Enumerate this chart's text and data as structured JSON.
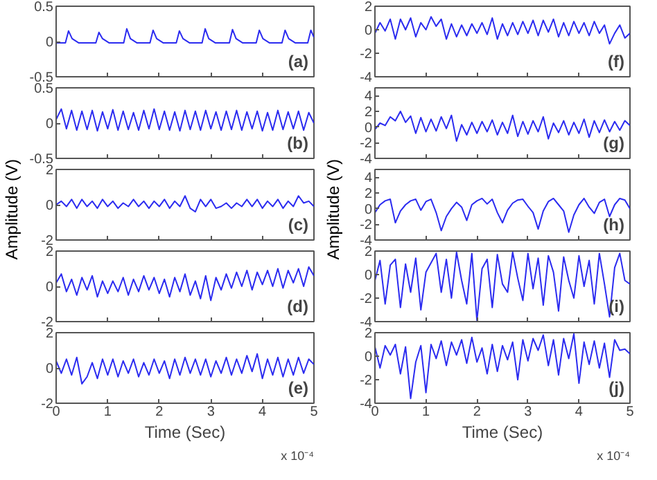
{
  "chart_data": [
    {
      "type": "line",
      "color": "#2b2bf0",
      "xlim": [
        0,
        5
      ],
      "ylim": [
        -0.5,
        0.5
      ],
      "xticks": [
        0,
        1,
        2,
        3,
        4,
        5
      ],
      "yticks": [
        -0.5,
        0,
        0.5
      ],
      "tick_labels": "y",
      "annotations": [
        "(a)"
      ],
      "x": [
        0,
        0.18,
        0.24,
        0.31,
        0.44,
        0.77,
        0.83,
        0.9,
        1.03,
        1.31,
        1.37,
        1.44,
        1.57,
        1.82,
        1.88,
        1.95,
        2.08,
        2.33,
        2.39,
        2.46,
        2.59,
        2.83,
        2.89,
        2.96,
        3.09,
        3.36,
        3.42,
        3.49,
        3.62,
        3.88,
        3.94,
        4.01,
        4.14,
        4.38,
        4.44,
        4.51,
        4.64,
        4.88,
        4.94,
        5.0
      ],
      "values": [
        -0.02,
        -0.02,
        0.15,
        0.04,
        -0.02,
        -0.02,
        0.13,
        0.04,
        -0.02,
        -0.02,
        0.18,
        0.04,
        -0.02,
        -0.02,
        0.16,
        0.04,
        -0.02,
        -0.02,
        0.15,
        0.04,
        -0.02,
        -0.02,
        0.18,
        0.04,
        -0.02,
        -0.02,
        0.17,
        0.04,
        -0.02,
        -0.02,
        0.16,
        0.04,
        -0.02,
        -0.02,
        0.16,
        0.04,
        -0.02,
        -0.02,
        0.16,
        0.06
      ]
    },
    {
      "type": "line",
      "color": "#2b2bf0",
      "xlim": [
        0,
        5
      ],
      "ylim": [
        -0.5,
        0.5
      ],
      "xticks": [
        0,
        1,
        2,
        3,
        4,
        5
      ],
      "yticks": [
        -0.5,
        0,
        0.5
      ],
      "tick_labels": "y",
      "annotations": [
        "(b)"
      ],
      "x": [
        0,
        0.1,
        0.2,
        0.3,
        0.4,
        0.5,
        0.6,
        0.7,
        0.8,
        0.9,
        1.0,
        1.1,
        1.2,
        1.3,
        1.4,
        1.5,
        1.6,
        1.7,
        1.8,
        1.9,
        2.0,
        2.1,
        2.2,
        2.3,
        2.4,
        2.5,
        2.6,
        2.7,
        2.8,
        2.9,
        3.0,
        3.1,
        3.2,
        3.3,
        3.4,
        3.5,
        3.6,
        3.7,
        3.8,
        3.9,
        4.0,
        4.1,
        4.2,
        4.3,
        4.4,
        4.5,
        4.6,
        4.7,
        4.8,
        4.9,
        5.0
      ],
      "values": [
        0.05,
        0.2,
        -0.08,
        0.18,
        -0.1,
        0.17,
        -0.09,
        0.18,
        -0.11,
        0.16,
        -0.08,
        0.19,
        -0.1,
        0.17,
        -0.09,
        0.15,
        -0.1,
        0.18,
        -0.08,
        0.2,
        -0.09,
        0.17,
        -0.1,
        0.16,
        -0.11,
        0.18,
        -0.09,
        0.17,
        -0.1,
        0.18,
        -0.08,
        0.16,
        -0.1,
        0.17,
        -0.09,
        0.18,
        -0.1,
        0.16,
        -0.08,
        0.17,
        -0.11,
        0.15,
        -0.1,
        0.18,
        -0.09,
        0.16,
        -0.08,
        0.17,
        -0.1,
        0.15,
        0.0
      ]
    },
    {
      "type": "line",
      "color": "#2b2bf0",
      "xlim": [
        0,
        5
      ],
      "ylim": [
        -2,
        2
      ],
      "xticks": [
        0,
        1,
        2,
        3,
        4,
        5
      ],
      "yticks": [
        -2,
        0,
        2
      ],
      "tick_labels": "y",
      "annotations": [
        "(c)"
      ],
      "ylabel": "Amplitude (V)",
      "x": [
        0,
        0.1,
        0.2,
        0.3,
        0.4,
        0.5,
        0.6,
        0.7,
        0.8,
        0.9,
        1.0,
        1.1,
        1.2,
        1.3,
        1.4,
        1.5,
        1.6,
        1.7,
        1.8,
        1.9,
        2.0,
        2.1,
        2.2,
        2.3,
        2.4,
        2.5,
        2.6,
        2.7,
        2.8,
        2.9,
        3.0,
        3.1,
        3.2,
        3.3,
        3.4,
        3.5,
        3.6,
        3.7,
        3.8,
        3.9,
        4.0,
        4.1,
        4.2,
        4.3,
        4.4,
        4.5,
        4.6,
        4.7,
        4.8,
        4.9,
        5.0
      ],
      "values": [
        0.0,
        0.2,
        -0.1,
        0.3,
        -0.2,
        0.3,
        -0.1,
        0.2,
        -0.2,
        0.3,
        -0.1,
        0.2,
        -0.2,
        0.1,
        -0.1,
        0.3,
        -0.1,
        0.2,
        -0.2,
        0.2,
        -0.1,
        0.3,
        -0.2,
        0.2,
        -0.1,
        0.5,
        -0.2,
        -0.4,
        0.3,
        -0.1,
        0.3,
        -0.2,
        -0.1,
        0.1,
        -0.2,
        0.1,
        -0.1,
        0.3,
        -0.1,
        0.3,
        -0.2,
        0.2,
        -0.1,
        0.3,
        -0.2,
        0.2,
        -0.1,
        0.5,
        0.1,
        0.2,
        -0.1
      ]
    },
    {
      "type": "line",
      "color": "#2b2bf0",
      "xlim": [
        0,
        5
      ],
      "ylim": [
        -2,
        2
      ],
      "xticks": [
        0,
        1,
        2,
        3,
        4,
        5
      ],
      "yticks": [
        -2,
        0,
        2
      ],
      "tick_labels": "y",
      "annotations": [
        "(d)"
      ],
      "x": [
        0,
        0.1,
        0.2,
        0.3,
        0.4,
        0.5,
        0.6,
        0.7,
        0.8,
        0.9,
        1.0,
        1.1,
        1.2,
        1.3,
        1.4,
        1.5,
        1.6,
        1.7,
        1.8,
        1.9,
        2.0,
        2.1,
        2.2,
        2.3,
        2.4,
        2.5,
        2.6,
        2.7,
        2.8,
        2.9,
        3.0,
        3.1,
        3.2,
        3.3,
        3.4,
        3.5,
        3.6,
        3.7,
        3.8,
        3.9,
        4.0,
        4.1,
        4.2,
        4.3,
        4.4,
        4.5,
        4.6,
        4.7,
        4.8,
        4.9,
        5.0
      ],
      "values": [
        0.2,
        0.7,
        -0.3,
        0.4,
        -0.5,
        0.5,
        -0.2,
        0.6,
        -0.6,
        0.3,
        -0.4,
        0.3,
        -0.3,
        0.5,
        -0.5,
        0.4,
        -0.3,
        0.6,
        -0.2,
        0.5,
        -0.4,
        0.4,
        -0.6,
        0.5,
        -0.3,
        0.7,
        -0.5,
        0.3,
        -0.7,
        0.6,
        -0.8,
        0.5,
        -0.2,
        0.7,
        -0.1,
        0.8,
        0.0,
        0.9,
        -0.2,
        0.8,
        0.1,
        0.9,
        0.0,
        1.0,
        -0.1,
        0.9,
        0.2,
        1.0,
        0.0,
        1.1,
        0.6
      ]
    },
    {
      "type": "line",
      "color": "#2b2bf0",
      "xlim": [
        0,
        5
      ],
      "ylim": [
        -2,
        2
      ],
      "xticks": [
        0,
        1,
        2,
        3,
        4,
        5
      ],
      "yticks": [
        -2,
        0,
        2
      ],
      "annotations": [
        "(e)",
        "x 10⁻⁴"
      ],
      "xlabel": "Time (Sec)",
      "x": [
        0,
        0.1,
        0.2,
        0.3,
        0.4,
        0.5,
        0.6,
        0.7,
        0.8,
        0.9,
        1.0,
        1.1,
        1.2,
        1.3,
        1.4,
        1.5,
        1.6,
        1.7,
        1.8,
        1.9,
        2.0,
        2.1,
        2.2,
        2.3,
        2.4,
        2.5,
        2.6,
        2.7,
        2.8,
        2.9,
        3.0,
        3.1,
        3.2,
        3.3,
        3.4,
        3.5,
        3.6,
        3.7,
        3.8,
        3.9,
        4.0,
        4.1,
        4.2,
        4.3,
        4.4,
        4.5,
        4.6,
        4.7,
        4.8,
        4.9,
        5.0
      ],
      "values": [
        0.4,
        -0.3,
        0.5,
        -0.4,
        0.6,
        -0.9,
        -0.5,
        0.3,
        -0.6,
        0.5,
        -0.4,
        0.5,
        -0.5,
        0.4,
        -0.3,
        0.5,
        -0.5,
        0.3,
        -0.4,
        0.5,
        -0.3,
        0.4,
        -0.6,
        0.5,
        -0.4,
        0.6,
        -0.3,
        0.5,
        -0.4,
        0.5,
        -0.5,
        0.4,
        -0.3,
        0.6,
        -0.4,
        0.5,
        -0.3,
        0.7,
        -0.2,
        0.8,
        -0.6,
        0.5,
        -0.4,
        0.6,
        -0.5,
        0.5,
        -0.4,
        0.6,
        -0.3,
        0.5,
        0.2
      ]
    },
    {
      "type": "line",
      "color": "#2b2bf0",
      "xlim": [
        0,
        5
      ],
      "ylim": [
        -4,
        2
      ],
      "xticks": [
        0,
        1,
        2,
        3,
        4,
        5
      ],
      "yticks": [
        -4,
        -2,
        0,
        2
      ],
      "tick_labels": "y",
      "annotations": [
        "(f)"
      ],
      "x": [
        0,
        0.1,
        0.2,
        0.3,
        0.4,
        0.5,
        0.6,
        0.7,
        0.8,
        0.9,
        1.0,
        1.1,
        1.2,
        1.3,
        1.4,
        1.5,
        1.6,
        1.7,
        1.8,
        1.9,
        2.0,
        2.1,
        2.2,
        2.3,
        2.4,
        2.5,
        2.6,
        2.7,
        2.8,
        2.9,
        3.0,
        3.1,
        3.2,
        3.3,
        3.4,
        3.5,
        3.6,
        3.7,
        3.8,
        3.9,
        4.0,
        4.1,
        4.2,
        4.3,
        4.4,
        4.5,
        4.6,
        4.7,
        4.8,
        4.9,
        5.0
      ],
      "values": [
        -0.3,
        0.6,
        -0.1,
        0.9,
        -0.8,
        0.9,
        0.0,
        1.0,
        -0.6,
        0.6,
        0.0,
        1.1,
        0.3,
        0.9,
        -0.8,
        0.5,
        -0.6,
        0.4,
        -0.5,
        0.5,
        -0.3,
        0.6,
        -0.4,
        1.0,
        -0.8,
        0.5,
        -0.5,
        0.6,
        -0.4,
        0.7,
        -0.3,
        0.8,
        -0.5,
        0.8,
        -0.2,
        0.9,
        -0.6,
        0.6,
        -0.5,
        0.7,
        -0.3,
        0.6,
        -0.5,
        0.7,
        -0.3,
        0.4,
        -1.2,
        -0.3,
        0.4,
        -0.7,
        -0.3
      ]
    },
    {
      "type": "line",
      "color": "#2b2bf0",
      "xlim": [
        0,
        5
      ],
      "ylim": [
        -4,
        5
      ],
      "xticks": [
        0,
        1,
        2,
        3,
        4,
        5
      ],
      "yticks": [
        -4,
        -2,
        0,
        2,
        4
      ],
      "tick_labels": "y",
      "annotations": [
        "(g)"
      ],
      "x": [
        0,
        0.1,
        0.2,
        0.3,
        0.4,
        0.5,
        0.6,
        0.7,
        0.8,
        0.9,
        1.0,
        1.1,
        1.2,
        1.3,
        1.4,
        1.5,
        1.6,
        1.7,
        1.8,
        1.9,
        2.0,
        2.1,
        2.2,
        2.3,
        2.4,
        2.5,
        2.6,
        2.7,
        2.8,
        2.9,
        3.0,
        3.1,
        3.2,
        3.3,
        3.4,
        3.5,
        3.6,
        3.7,
        3.8,
        3.9,
        4.0,
        4.1,
        4.2,
        4.3,
        4.4,
        4.5,
        4.6,
        4.7,
        4.8,
        4.9,
        5.0
      ],
      "values": [
        -0.3,
        0.5,
        0.2,
        1.3,
        0.8,
        2.0,
        0.6,
        1.4,
        -0.8,
        1.2,
        -0.6,
        1.0,
        -0.5,
        1.3,
        -0.2,
        1.5,
        -1.8,
        0.3,
        -1.0,
        0.6,
        -0.8,
        0.7,
        -0.6,
        0.9,
        -1.0,
        0.6,
        -0.8,
        1.5,
        -1.2,
        0.7,
        -0.9,
        0.8,
        -0.6,
        1.3,
        -1.5,
        0.5,
        -0.7,
        0.8,
        -1.0,
        0.6,
        -0.8,
        1.0,
        -1.3,
        0.8,
        -0.7,
        0.9,
        -0.6,
        0.7,
        -0.4,
        0.8,
        0.2
      ]
    },
    {
      "type": "line",
      "color": "#2b2bf0",
      "xlim": [
        0,
        5
      ],
      "ylim": [
        -4,
        5
      ],
      "xticks": [
        0,
        1,
        2,
        3,
        4,
        5
      ],
      "yticks": [
        -4,
        -2,
        0,
        2,
        4
      ],
      "tick_labels": "y",
      "annotations": [
        "(h)"
      ],
      "ylabel": "Amplitude (V)",
      "x": [
        0,
        0.1,
        0.2,
        0.3,
        0.4,
        0.5,
        0.6,
        0.7,
        0.8,
        0.9,
        1.0,
        1.1,
        1.2,
        1.3,
        1.4,
        1.5,
        1.6,
        1.7,
        1.8,
        1.9,
        2.0,
        2.1,
        2.2,
        2.3,
        2.4,
        2.5,
        2.6,
        2.7,
        2.8,
        2.9,
        3.0,
        3.1,
        3.2,
        3.3,
        3.4,
        3.5,
        3.6,
        3.7,
        3.8,
        3.9,
        4.0,
        4.1,
        4.2,
        4.3,
        4.4,
        4.5,
        4.6,
        4.7,
        4.8,
        4.9,
        5.0
      ],
      "values": [
        -0.5,
        0.5,
        1.0,
        1.2,
        -1.8,
        -0.3,
        0.5,
        1.0,
        1.2,
        -0.2,
        0.9,
        1.2,
        -0.5,
        -2.8,
        -1.0,
        0.0,
        0.8,
        0.2,
        -1.5,
        0.5,
        1.0,
        1.3,
        0.6,
        1.2,
        -0.5,
        -1.8,
        -0.2,
        0.7,
        1.1,
        1.2,
        0.3,
        -0.5,
        -2.6,
        -0.3,
        0.9,
        1.3,
        0.5,
        -0.3,
        -3.0,
        -0.8,
        0.5,
        1.3,
        0.2,
        -0.6,
        0.8,
        1.2,
        -1.0,
        0.5,
        1.3,
        1.1,
        0.0
      ]
    },
    {
      "type": "line",
      "color": "#2b2bf0",
      "xlim": [
        0,
        5
      ],
      "ylim": [
        -4,
        2
      ],
      "xticks": [
        0,
        1,
        2,
        3,
        4,
        5
      ],
      "yticks": [
        -4,
        -2,
        0,
        2
      ],
      "tick_labels": "y",
      "annotations": [
        "(i)"
      ],
      "x": [
        0,
        0.1,
        0.2,
        0.3,
        0.4,
        0.5,
        0.6,
        0.7,
        0.8,
        0.9,
        1.0,
        1.1,
        1.2,
        1.3,
        1.4,
        1.5,
        1.6,
        1.7,
        1.8,
        1.9,
        2.0,
        2.1,
        2.2,
        2.3,
        2.4,
        2.5,
        2.6,
        2.7,
        2.8,
        2.9,
        3.0,
        3.1,
        3.2,
        3.3,
        3.4,
        3.5,
        3.6,
        3.7,
        3.8,
        3.9,
        4.0,
        4.1,
        4.2,
        4.3,
        4.4,
        4.5,
        4.6,
        4.7,
        4.8,
        4.9,
        5.0
      ],
      "values": [
        -0.5,
        1.2,
        -2.5,
        0.8,
        1.3,
        -2.8,
        0.9,
        -1.5,
        1.4,
        -3.0,
        0.2,
        1.0,
        1.8,
        -1.5,
        1.3,
        -2.0,
        1.9,
        -0.5,
        -2.5,
        1.8,
        -3.9,
        0.5,
        1.3,
        -2.8,
        1.7,
        -0.8,
        -1.5,
        1.9,
        -0.3,
        -2.2,
        1.8,
        -1.2,
        1.4,
        -2.6,
        1.6,
        0.2,
        -3.1,
        1.5,
        -0.5,
        -2.0,
        1.6,
        -1.0,
        1.2,
        -2.5,
        1.8,
        -0.8,
        -3.6,
        0.6,
        1.8,
        -0.5,
        -0.8
      ]
    },
    {
      "type": "line",
      "color": "#2b2bf0",
      "xlim": [
        0,
        5
      ],
      "ylim": [
        -4,
        2
      ],
      "xticks": [
        0,
        1,
        2,
        3,
        4,
        5
      ],
      "yticks": [
        -4,
        -2,
        0,
        2
      ],
      "annotations": [
        "(j)",
        "x 10⁻⁴"
      ],
      "xlabel": "Time (Sec)",
      "x": [
        0,
        0.1,
        0.2,
        0.3,
        0.4,
        0.5,
        0.6,
        0.7,
        0.8,
        0.9,
        1.0,
        1.1,
        1.2,
        1.3,
        1.4,
        1.5,
        1.6,
        1.7,
        1.8,
        1.9,
        2.0,
        2.1,
        2.2,
        2.3,
        2.4,
        2.5,
        2.6,
        2.7,
        2.8,
        2.9,
        3.0,
        3.1,
        3.2,
        3.3,
        3.4,
        3.5,
        3.6,
        3.7,
        3.8,
        3.9,
        4.0,
        4.1,
        4.2,
        4.3,
        4.4,
        4.5,
        4.6,
        4.7,
        4.8,
        4.9,
        5.0
      ],
      "values": [
        0.8,
        -1.0,
        0.9,
        0.1,
        1.0,
        -1.5,
        0.8,
        -3.6,
        -0.5,
        0.9,
        -3.1,
        1.0,
        -0.2,
        1.3,
        -0.8,
        1.2,
        0.1,
        1.4,
        -0.6,
        1.6,
        -0.5,
        0.7,
        -1.5,
        1.0,
        -1.3,
        0.9,
        -0.3,
        1.2,
        -2.0,
        1.4,
        -0.4,
        1.5,
        0.5,
        1.8,
        -0.8,
        1.4,
        -1.6,
        1.5,
        -0.2,
        1.9,
        -2.3,
        1.2,
        -0.7,
        1.3,
        -1.0,
        1.1,
        -1.8,
        1.4,
        0.5,
        0.6,
        0.2
      ]
    }
  ]
}
